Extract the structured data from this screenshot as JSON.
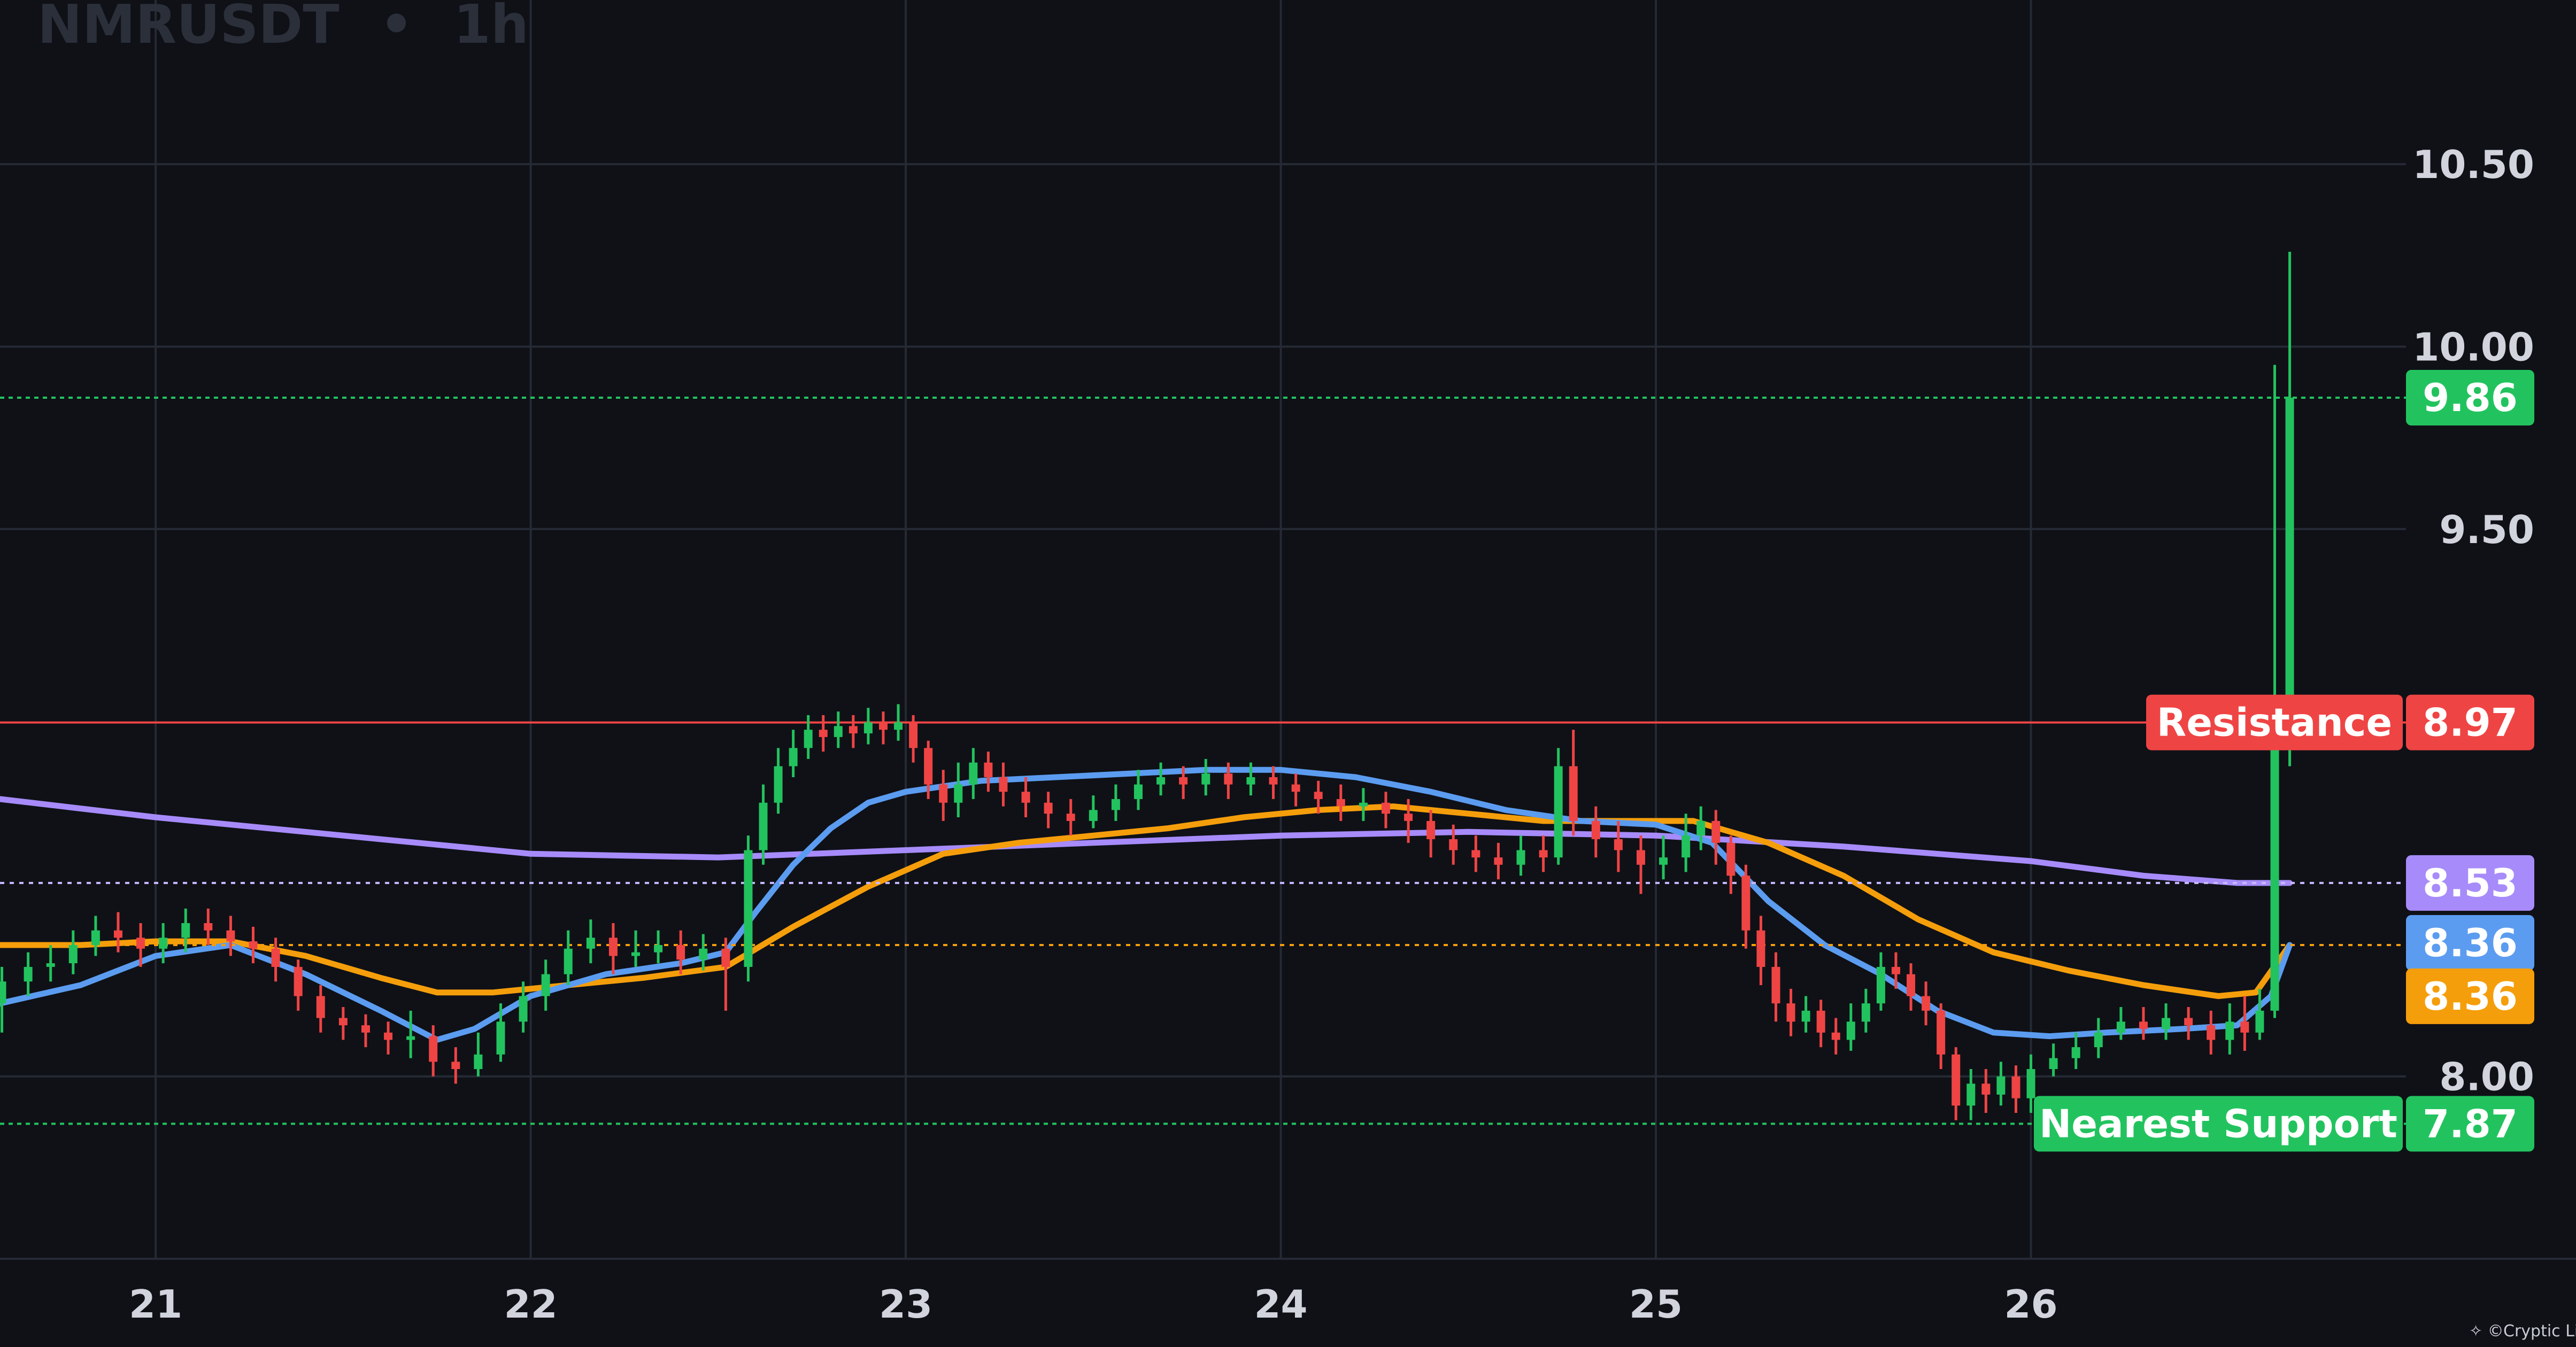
{
  "header": {
    "symbol": "NMRUSDT",
    "separator": "•",
    "interval": "1h"
  },
  "watermark": "Cryptic Lion",
  "colors": {
    "background": "#0f1117",
    "grid": "#252a34",
    "up": "#22c35e",
    "down": "#ef4444",
    "ema_fast": "#5b9cf0",
    "ema_mid": "#f59e0b",
    "ema_slow": "#a78bfa",
    "resistance": "#ef4444",
    "support": "#22c35e",
    "axis_text": "#d1d4dc"
  },
  "chart_data": {
    "type": "candlestick",
    "title": "NMRUSDT • 1h",
    "x_tick_labels": [
      "21",
      "22",
      "23",
      "24",
      "25",
      "26"
    ],
    "x_ticks": [
      1,
      2,
      3,
      4,
      5,
      6
    ],
    "x_range": [
      0.585,
      7.0
    ],
    "y_tick_labels": [
      "8.00",
      "9.50",
      "10.00",
      "10.50"
    ],
    "y_ticks": [
      8.0,
      9.5,
      10.0,
      10.5
    ],
    "y_range": [
      7.5,
      10.95
    ],
    "grid": true,
    "candles": [
      [
        0.59,
        8.2,
        8.26,
        8.3,
        8.12
      ],
      [
        0.66,
        8.26,
        8.3,
        8.34,
        8.22
      ],
      [
        0.72,
        8.3,
        8.31,
        8.36,
        8.26
      ],
      [
        0.78,
        8.31,
        8.36,
        8.4,
        8.28
      ],
      [
        0.84,
        8.36,
        8.4,
        8.44,
        8.33
      ],
      [
        0.9,
        8.4,
        8.38,
        8.45,
        8.34
      ],
      [
        0.96,
        8.38,
        8.35,
        8.42,
        8.3
      ],
      [
        1.02,
        8.35,
        8.38,
        8.42,
        8.31
      ],
      [
        1.08,
        8.38,
        8.42,
        8.46,
        8.34
      ],
      [
        1.14,
        8.42,
        8.4,
        8.46,
        8.36
      ],
      [
        1.2,
        8.4,
        8.37,
        8.44,
        8.33
      ],
      [
        1.26,
        8.37,
        8.35,
        8.41,
        8.31
      ],
      [
        1.32,
        8.35,
        8.3,
        8.38,
        8.26
      ],
      [
        1.38,
        8.3,
        8.22,
        8.32,
        8.18
      ],
      [
        1.44,
        8.22,
        8.16,
        8.25,
        8.12
      ],
      [
        1.5,
        8.16,
        8.14,
        8.19,
        8.1
      ],
      [
        1.56,
        8.14,
        8.12,
        8.17,
        8.08
      ],
      [
        1.62,
        8.12,
        8.1,
        8.15,
        8.06
      ],
      [
        1.68,
        8.1,
        8.11,
        8.18,
        8.05
      ],
      [
        1.74,
        8.11,
        8.04,
        8.14,
        8.0
      ],
      [
        1.8,
        8.04,
        8.02,
        8.08,
        7.98
      ],
      [
        1.86,
        8.02,
        8.06,
        8.12,
        8.0
      ],
      [
        1.92,
        8.06,
        8.15,
        8.2,
        8.04
      ],
      [
        1.98,
        8.15,
        8.22,
        8.26,
        8.12
      ],
      [
        2.04,
        8.22,
        8.28,
        8.32,
        8.18
      ],
      [
        2.1,
        8.28,
        8.35,
        8.4,
        8.25
      ],
      [
        2.16,
        8.35,
        8.38,
        8.43,
        8.31
      ],
      [
        2.22,
        8.38,
        8.33,
        8.42,
        8.28
      ],
      [
        2.28,
        8.33,
        8.34,
        8.4,
        8.3
      ],
      [
        2.34,
        8.34,
        8.36,
        8.4,
        8.31
      ],
      [
        2.4,
        8.36,
        8.32,
        8.4,
        8.28
      ],
      [
        2.46,
        8.32,
        8.35,
        8.39,
        8.29
      ],
      [
        2.52,
        8.35,
        8.3,
        8.38,
        8.18
      ],
      [
        2.58,
        8.3,
        8.62,
        8.66,
        8.26
      ],
      [
        2.62,
        8.62,
        8.75,
        8.8,
        8.58
      ],
      [
        2.66,
        8.75,
        8.85,
        8.9,
        8.72
      ],
      [
        2.7,
        8.85,
        8.9,
        8.95,
        8.82
      ],
      [
        2.74,
        8.9,
        8.95,
        8.99,
        8.87
      ],
      [
        2.78,
        8.95,
        8.93,
        8.99,
        8.89
      ],
      [
        2.82,
        8.93,
        8.96,
        9.0,
        8.9
      ],
      [
        2.86,
        8.96,
        8.94,
        8.99,
        8.9
      ],
      [
        2.9,
        8.94,
        8.97,
        9.01,
        8.91
      ],
      [
        2.94,
        8.97,
        8.95,
        9.0,
        8.91
      ],
      [
        2.98,
        8.95,
        8.97,
        9.02,
        8.92
      ],
      [
        3.02,
        8.97,
        8.9,
        8.99,
        8.86
      ],
      [
        3.06,
        8.9,
        8.8,
        8.92,
        8.76
      ],
      [
        3.1,
        8.8,
        8.75,
        8.84,
        8.7
      ],
      [
        3.14,
        8.75,
        8.8,
        8.86,
        8.71
      ],
      [
        3.18,
        8.8,
        8.86,
        8.9,
        8.76
      ],
      [
        3.22,
        8.86,
        8.82,
        8.89,
        8.78
      ],
      [
        3.26,
        8.82,
        8.78,
        8.86,
        8.74
      ],
      [
        3.32,
        8.78,
        8.75,
        8.82,
        8.71
      ],
      [
        3.38,
        8.75,
        8.72,
        8.78,
        8.68
      ],
      [
        3.44,
        8.72,
        8.7,
        8.76,
        8.66
      ],
      [
        3.5,
        8.7,
        8.73,
        8.77,
        8.68
      ],
      [
        3.56,
        8.73,
        8.76,
        8.8,
        8.7
      ],
      [
        3.62,
        8.76,
        8.8,
        8.84,
        8.73
      ],
      [
        3.68,
        8.8,
        8.82,
        8.86,
        8.77
      ],
      [
        3.74,
        8.82,
        8.8,
        8.85,
        8.76
      ],
      [
        3.8,
        8.8,
        8.83,
        8.87,
        8.77
      ],
      [
        3.86,
        8.83,
        8.8,
        8.86,
        8.76
      ],
      [
        3.92,
        8.8,
        8.82,
        8.86,
        8.77
      ],
      [
        3.98,
        8.82,
        8.8,
        8.85,
        8.76
      ],
      [
        4.04,
        8.8,
        8.78,
        8.83,
        8.74
      ],
      [
        4.1,
        8.78,
        8.76,
        8.81,
        8.72
      ],
      [
        4.16,
        8.76,
        8.74,
        8.8,
        8.7
      ],
      [
        4.22,
        8.74,
        8.75,
        8.79,
        8.7
      ],
      [
        4.28,
        8.75,
        8.72,
        8.78,
        8.68
      ],
      [
        4.34,
        8.72,
        8.7,
        8.76,
        8.64
      ],
      [
        4.4,
        8.7,
        8.65,
        8.73,
        8.6
      ],
      [
        4.46,
        8.65,
        8.62,
        8.69,
        8.58
      ],
      [
        4.52,
        8.62,
        8.6,
        8.66,
        8.56
      ],
      [
        4.58,
        8.6,
        8.58,
        8.64,
        8.54
      ],
      [
        4.64,
        8.58,
        8.62,
        8.66,
        8.55
      ],
      [
        4.7,
        8.62,
        8.6,
        8.66,
        8.56
      ],
      [
        4.74,
        8.6,
        8.85,
        8.9,
        8.58
      ],
      [
        4.78,
        8.85,
        8.7,
        8.95,
        8.66
      ],
      [
        4.84,
        8.7,
        8.65,
        8.74,
        8.6
      ],
      [
        4.9,
        8.65,
        8.62,
        8.7,
        8.56
      ],
      [
        4.96,
        8.62,
        8.58,
        8.66,
        8.5
      ],
      [
        5.02,
        8.58,
        8.6,
        8.66,
        8.54
      ],
      [
        5.08,
        8.6,
        8.66,
        8.72,
        8.56
      ],
      [
        5.12,
        8.66,
        8.7,
        8.74,
        8.62
      ],
      [
        5.16,
        8.7,
        8.64,
        8.73,
        8.58
      ],
      [
        5.2,
        8.64,
        8.55,
        8.66,
        8.5
      ],
      [
        5.24,
        8.55,
        8.4,
        8.58,
        8.35
      ],
      [
        5.28,
        8.4,
        8.3,
        8.44,
        8.25
      ],
      [
        5.32,
        8.3,
        8.2,
        8.34,
        8.15
      ],
      [
        5.36,
        8.2,
        8.15,
        8.24,
        8.11
      ],
      [
        5.4,
        8.15,
        8.18,
        8.22,
        8.12
      ],
      [
        5.44,
        8.18,
        8.12,
        8.21,
        8.08
      ],
      [
        5.48,
        8.12,
        8.1,
        8.16,
        8.06
      ],
      [
        5.52,
        8.1,
        8.15,
        8.2,
        8.07
      ],
      [
        5.56,
        8.15,
        8.2,
        8.24,
        8.12
      ],
      [
        5.6,
        8.2,
        8.3,
        8.34,
        8.18
      ],
      [
        5.64,
        8.3,
        8.28,
        8.34,
        8.24
      ],
      [
        5.68,
        8.28,
        8.22,
        8.31,
        8.18
      ],
      [
        5.72,
        8.22,
        8.18,
        8.26,
        8.14
      ],
      [
        5.76,
        8.18,
        8.06,
        8.2,
        8.02
      ],
      [
        5.8,
        8.06,
        7.92,
        8.08,
        7.88
      ],
      [
        5.84,
        7.92,
        7.98,
        8.02,
        7.88
      ],
      [
        5.88,
        7.98,
        7.95,
        8.02,
        7.9
      ],
      [
        5.92,
        7.95,
        8.0,
        8.04,
        7.92
      ],
      [
        5.96,
        8.0,
        7.94,
        8.03,
        7.9
      ],
      [
        6.0,
        7.94,
        8.02,
        8.06,
        7.9
      ],
      [
        6.06,
        8.02,
        8.05,
        8.09,
        8.0
      ],
      [
        6.12,
        8.05,
        8.08,
        8.12,
        8.02
      ],
      [
        6.18,
        8.08,
        8.12,
        8.16,
        8.05
      ],
      [
        6.24,
        8.12,
        8.15,
        8.19,
        8.1
      ],
      [
        6.3,
        8.15,
        8.13,
        8.19,
        8.1
      ],
      [
        6.36,
        8.13,
        8.16,
        8.2,
        8.1
      ],
      [
        6.42,
        8.16,
        8.14,
        8.19,
        8.1
      ],
      [
        6.48,
        8.14,
        8.1,
        8.18,
        8.06
      ],
      [
        6.53,
        8.1,
        8.15,
        8.2,
        8.06
      ],
      [
        6.57,
        8.15,
        8.12,
        8.22,
        8.07
      ],
      [
        6.61,
        8.12,
        8.18,
        8.24,
        8.1
      ],
      [
        6.65,
        8.18,
        8.9,
        9.95,
        8.16
      ],
      [
        6.69,
        8.9,
        9.86,
        10.26,
        8.85
      ]
    ],
    "ema_fast": {
      "label": "8.36",
      "x": [
        0.585,
        0.8,
        1.0,
        1.2,
        1.4,
        1.6,
        1.75,
        1.85,
        2.0,
        2.2,
        2.4,
        2.52,
        2.6,
        2.7,
        2.8,
        2.9,
        3.0,
        3.2,
        3.4,
        3.6,
        3.8,
        4.0,
        4.2,
        4.4,
        4.6,
        4.8,
        5.0,
        5.15,
        5.3,
        5.45,
        5.6,
        5.75,
        5.9,
        6.05,
        6.2,
        6.4,
        6.55,
        6.64,
        6.69
      ],
      "y": [
        8.2,
        8.25,
        8.33,
        8.36,
        8.28,
        8.18,
        8.1,
        8.13,
        8.22,
        8.28,
        8.31,
        8.34,
        8.45,
        8.58,
        8.68,
        8.75,
        8.78,
        8.81,
        8.82,
        8.83,
        8.84,
        8.84,
        8.82,
        8.78,
        8.73,
        8.7,
        8.69,
        8.64,
        8.48,
        8.36,
        8.28,
        8.18,
        8.12,
        8.11,
        8.12,
        8.13,
        8.14,
        8.22,
        8.36
      ]
    },
    "ema_mid": {
      "label": "8.36",
      "x": [
        0.585,
        0.8,
        1.0,
        1.2,
        1.4,
        1.6,
        1.75,
        1.9,
        2.1,
        2.3,
        2.52,
        2.7,
        2.9,
        3.1,
        3.3,
        3.5,
        3.7,
        3.9,
        4.1,
        4.3,
        4.5,
        4.7,
        4.9,
        5.1,
        5.3,
        5.5,
        5.7,
        5.9,
        6.1,
        6.3,
        6.5,
        6.6,
        6.69
      ],
      "y": [
        8.36,
        8.36,
        8.37,
        8.37,
        8.33,
        8.27,
        8.23,
        8.23,
        8.25,
        8.27,
        8.3,
        8.41,
        8.52,
        8.61,
        8.64,
        8.66,
        8.68,
        8.71,
        8.73,
        8.74,
        8.72,
        8.7,
        8.7,
        8.7,
        8.64,
        8.55,
        8.43,
        8.34,
        8.29,
        8.25,
        8.22,
        8.23,
        8.36
      ]
    },
    "ema_slow": {
      "label": "8.53",
      "x": [
        0.585,
        1.0,
        1.5,
        2.0,
        2.5,
        3.0,
        3.5,
        4.0,
        4.5,
        5.0,
        5.5,
        6.0,
        6.3,
        6.55,
        6.69
      ],
      "y": [
        8.76,
        8.71,
        8.66,
        8.61,
        8.6,
        8.62,
        8.64,
        8.66,
        8.67,
        8.66,
        8.63,
        8.59,
        8.55,
        8.53,
        8.53
      ]
    },
    "levels": [
      {
        "name": "Resistance",
        "label": "Resistance",
        "value": 8.97,
        "value_label": "8.97",
        "style": "solid",
        "color": "#ef4444"
      },
      {
        "name": "Nearest Support",
        "label": "Nearest Support",
        "value": 7.87,
        "value_label": "7.87",
        "style": "dotted",
        "color": "#22c35e"
      },
      {
        "name": "last",
        "label": "",
        "value": 9.86,
        "value_label": "9.86",
        "style": "dotted",
        "color": "#22c35e"
      }
    ],
    "price_tags": [
      {
        "value": 8.53,
        "text": "8.53",
        "color": "#a78bfa",
        "line_color": "#c9b8ff"
      },
      {
        "value": 8.36,
        "text": "8.36",
        "color": "#5b9cf0",
        "line_color": ""
      },
      {
        "value": 8.36,
        "text": "8.36",
        "color": "#f59e0b",
        "line_color": "#f59e0b"
      }
    ]
  }
}
